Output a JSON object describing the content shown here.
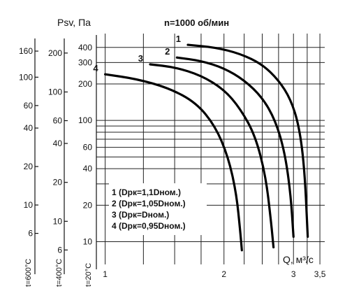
{
  "chart_data": {
    "type": "line",
    "title": "n=1000 об/мин",
    "ylabel": "Psv, Па",
    "xlabel": "Q, м³/с",
    "x_scale": "log",
    "y_scale": "log",
    "xlim": [
      0.95,
      3.6
    ],
    "ylim": [
      6.5,
      520
    ],
    "x_ticks": [
      1,
      2,
      3,
      3.5
    ],
    "x_tick_labels": [
      "1",
      "2",
      "3",
      "3,5"
    ],
    "y_ticks": [
      10,
      20,
      40,
      60,
      100,
      200,
      300,
      400
    ],
    "y_tick_labels": [
      "10",
      "20",
      "40",
      "60",
      "100",
      "200",
      "300",
      "400"
    ],
    "y_gridlines": [
      10,
      20,
      30,
      40,
      50,
      60,
      70,
      80,
      90,
      100,
      200,
      300,
      400
    ],
    "x_gridlines": [
      1,
      1.25,
      1.5,
      1.75,
      2,
      2.25,
      2.5,
      2.75,
      3,
      3.25,
      3.5
    ],
    "extra_axes": [
      {
        "name": "t=400°C",
        "ticks": [
          6,
          10,
          20,
          40,
          60,
          100,
          200
        ],
        "labels": [
          "6",
          "10",
          "20",
          "40",
          "60",
          "100",
          "200"
        ]
      },
      {
        "name": "t=600°C",
        "ticks": [
          6,
          10,
          20,
          40,
          60,
          100,
          160
        ],
        "labels": [
          "6",
          "10",
          "20",
          "40",
          "60",
          "100",
          "160"
        ]
      }
    ],
    "axis_temp_labels": [
      "t=600°C",
      "t=400°C",
      "t=20°C"
    ],
    "legend": [
      "1 (Dpк=1,1Dном.)",
      "2 (Dpк=1,05Dном.)",
      "3 (Dpк=Dном.)",
      "4 (Dpк=0,95Dном.)"
    ],
    "series": [
      {
        "name": "1",
        "x": [
          1.62,
          1.9,
          2.2,
          2.5,
          2.75,
          2.95,
          3.1,
          3.2,
          3.26
        ],
        "y": [
          420,
          400,
          355,
          290,
          215,
          150,
          90,
          40,
          11
        ]
      },
      {
        "name": "2",
        "x": [
          1.52,
          1.75,
          2.0,
          2.25,
          2.5,
          2.7,
          2.85,
          2.95,
          3.0
        ],
        "y": [
          330,
          310,
          270,
          215,
          155,
          100,
          55,
          25,
          11
        ]
      },
      {
        "name": "3",
        "x": [
          1.3,
          1.5,
          1.75,
          2.0,
          2.2,
          2.4,
          2.55,
          2.63,
          2.67
        ],
        "y": [
          290,
          275,
          235,
          180,
          125,
          75,
          35,
          15,
          9
        ]
      },
      {
        "name": "4",
        "x": [
          1.0,
          1.2,
          1.45,
          1.7,
          1.9,
          2.05,
          2.15,
          2.2,
          2.22
        ],
        "y": [
          240,
          220,
          185,
          140,
          90,
          50,
          25,
          12,
          8.5
        ]
      }
    ]
  }
}
